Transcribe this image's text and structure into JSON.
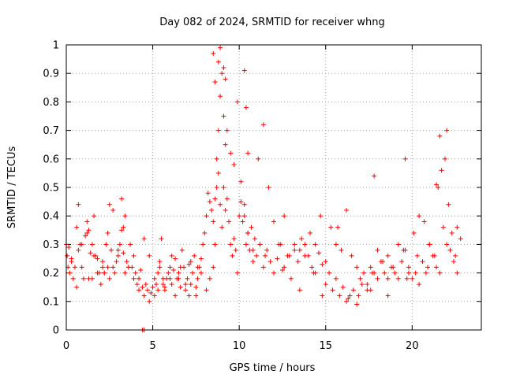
{
  "chart_data": {
    "type": "scatter",
    "title": "Day 082 of 2024, SRMTID for receiver whng",
    "xlabel": "GPS time / hours",
    "ylabel": "SRMTID / TECUs",
    "xlim": [
      0,
      24
    ],
    "ylim": [
      0,
      1
    ],
    "xticks": [
      0,
      5,
      10,
      15,
      20
    ],
    "xtick_labels": [
      "0",
      "5",
      "10",
      "15",
      "20"
    ],
    "yticks": [
      0,
      0.1,
      0.2,
      0.3,
      0.4,
      0.5,
      0.6,
      0.7,
      0.8,
      0.9,
      1
    ],
    "ytick_labels": [
      "0",
      "0.1",
      "0.2",
      "0.3",
      "0.4",
      "0.5",
      "0.6",
      "0.7",
      "0.8",
      "0.9",
      "1"
    ],
    "grid": true,
    "marker": "+",
    "series": [
      {
        "name": "SRMTID",
        "color": "#ff0000",
        "x": [
          0.0,
          0.1,
          0.2,
          0.3,
          0.4,
          0.5,
          0.6,
          0.7,
          0.8,
          0.9,
          1.0,
          1.1,
          1.2,
          1.3,
          1.4,
          1.5,
          1.6,
          1.7,
          1.8,
          1.9,
          2.0,
          2.1,
          2.2,
          2.3,
          2.4,
          2.5,
          2.6,
          2.7,
          2.8,
          2.9,
          3.0,
          3.1,
          3.2,
          3.3,
          3.4,
          3.5,
          3.6,
          3.7,
          3.8,
          3.9,
          4.0,
          4.1,
          4.2,
          4.3,
          4.4,
          4.5,
          4.6,
          4.7,
          4.8,
          4.9,
          5.0,
          5.1,
          5.2,
          5.3,
          5.4,
          5.5,
          5.6,
          5.7,
          5.8,
          5.9,
          6.0,
          6.1,
          6.2,
          6.3,
          6.4,
          6.5,
          6.6,
          6.7,
          6.8,
          6.9,
          7.0,
          7.1,
          7.2,
          7.3,
          7.4,
          7.5,
          7.6,
          7.7,
          7.8,
          7.9,
          8.0,
          8.1,
          8.2,
          8.3,
          8.4,
          8.5,
          8.6,
          8.7,
          8.8,
          8.9,
          9.0,
          9.1,
          9.2,
          9.3,
          9.4,
          9.5,
          9.6,
          9.7,
          9.8,
          9.9,
          10.0,
          10.1,
          10.2,
          10.3,
          10.4,
          10.5,
          10.6,
          10.7,
          10.8,
          10.9,
          11.0,
          11.2,
          11.4,
          11.6,
          11.8,
          12.0,
          12.2,
          12.4,
          12.6,
          12.8,
          13.0,
          13.2,
          13.4,
          13.6,
          13.8,
          14.0,
          14.2,
          14.4,
          14.6,
          14.8,
          15.0,
          15.2,
          15.4,
          15.6,
          15.8,
          16.0,
          16.2,
          16.4,
          16.6,
          16.8,
          17.0,
          17.2,
          17.4,
          17.6,
          17.8,
          18.0,
          18.2,
          18.4,
          18.6,
          18.8,
          19.0,
          19.2,
          19.4,
          19.6,
          19.8,
          20.0,
          20.2,
          20.4,
          20.6,
          20.8,
          21.0,
          21.2,
          21.4,
          21.6,
          21.8,
          22.0,
          22.2,
          22.4,
          22.6,
          22.8,
          0.05,
          0.3,
          0.6,
          0.9,
          1.2,
          1.5,
          1.8,
          2.1,
          2.4,
          2.7,
          3.0,
          3.3,
          3.6,
          3.9,
          4.2,
          4.5,
          4.8,
          5.1,
          5.4,
          5.7,
          6.0,
          6.3,
          6.6,
          6.9,
          7.2,
          7.5,
          7.8,
          8.1,
          8.3,
          8.5,
          8.6,
          8.7,
          8.8,
          8.9,
          9.0,
          9.1,
          9.2,
          9.3,
          9.5,
          9.7,
          9.9,
          10.1,
          10.3,
          10.5,
          10.8,
          11.1,
          11.4,
          11.7,
          12.0,
          12.3,
          12.6,
          12.9,
          13.2,
          13.5,
          13.8,
          14.1,
          14.4,
          14.7,
          15.0,
          15.3,
          15.6,
          15.9,
          16.2,
          16.5,
          16.8,
          17.1,
          17.4,
          17.7,
          18.0,
          18.3,
          18.6,
          18.9,
          19.2,
          19.5,
          19.8,
          20.1,
          20.4,
          20.7,
          21.0,
          21.3,
          21.5,
          21.7,
          21.9,
          22.1,
          22.3,
          22.6,
          4.4,
          4.5,
          8.5,
          8.6,
          8.8,
          8.9,
          9.1,
          9.2,
          10.3,
          10.4,
          10.5,
          17.8,
          19.6,
          21.4,
          21.6,
          22.0,
          0.15,
          0.7,
          1.3,
          1.6,
          2.2,
          2.5,
          3.2,
          3.4,
          5.3,
          5.6,
          6.1,
          6.5,
          7.1,
          7.6,
          11.5,
          12.5,
          13.5,
          14.3,
          14.8,
          15.7,
          16.3,
          16.9,
          17.6,
          18.6,
          19.7,
          20.3,
          20.9,
          22.5
        ],
        "y": [
          0.3,
          0.22,
          0.2,
          0.25,
          0.18,
          0.22,
          0.15,
          0.28,
          0.3,
          0.22,
          0.18,
          0.33,
          0.38,
          0.35,
          0.27,
          0.3,
          0.4,
          0.26,
          0.25,
          0.2,
          0.16,
          0.22,
          0.2,
          0.3,
          0.22,
          0.18,
          0.28,
          0.22,
          0.2,
          0.24,
          0.26,
          0.3,
          0.35,
          0.27,
          0.2,
          0.24,
          0.22,
          0.3,
          0.22,
          0.18,
          0.2,
          0.16,
          0.18,
          0.21,
          0.15,
          0.12,
          0.16,
          0.14,
          0.1,
          0.13,
          0.15,
          0.12,
          0.16,
          0.14,
          0.24,
          0.32,
          0.18,
          0.15,
          0.18,
          0.2,
          0.22,
          0.16,
          0.21,
          0.25,
          0.18,
          0.2,
          0.15,
          0.28,
          0.22,
          0.14,
          0.18,
          0.12,
          0.16,
          0.2,
          0.26,
          0.15,
          0.18,
          0.22,
          0.25,
          0.3,
          0.34,
          0.4,
          0.48,
          0.45,
          0.42,
          0.38,
          0.46,
          0.5,
          0.55,
          0.44,
          0.36,
          0.5,
          0.42,
          0.46,
          0.38,
          0.3,
          0.26,
          0.32,
          0.28,
          0.2,
          0.4,
          0.45,
          0.38,
          0.44,
          0.3,
          0.34,
          0.28,
          0.36,
          0.24,
          0.32,
          0.26,
          0.3,
          0.22,
          0.28,
          0.24,
          0.2,
          0.25,
          0.3,
          0.22,
          0.26,
          0.18,
          0.28,
          0.24,
          0.32,
          0.3,
          0.26,
          0.22,
          0.2,
          0.27,
          0.23,
          0.16,
          0.2,
          0.14,
          0.18,
          0.12,
          0.15,
          0.1,
          0.12,
          0.14,
          0.09,
          0.18,
          0.2,
          0.16,
          0.22,
          0.2,
          0.18,
          0.24,
          0.2,
          0.26,
          0.22,
          0.2,
          0.18,
          0.24,
          0.28,
          0.22,
          0.18,
          0.2,
          0.16,
          0.24,
          0.2,
          0.3,
          0.26,
          0.22,
          0.2,
          0.36,
          0.3,
          0.28,
          0.24,
          0.2,
          0.32,
          0.26,
          0.24,
          0.36,
          0.3,
          0.34,
          0.18,
          0.2,
          0.24,
          0.34,
          0.42,
          0.28,
          0.36,
          0.22,
          0.26,
          0.14,
          0.32,
          0.26,
          0.18,
          0.22,
          0.14,
          0.18,
          0.12,
          0.22,
          0.16,
          0.24,
          0.12,
          0.2,
          0.14,
          0.18,
          0.22,
          0.3,
          0.6,
          0.7,
          0.82,
          0.9,
          0.75,
          0.65,
          0.7,
          0.62,
          0.58,
          0.8,
          0.52,
          0.4,
          0.34,
          0.28,
          0.6,
          0.72,
          0.5,
          0.38,
          0.3,
          0.4,
          0.26,
          0.3,
          0.28,
          0.26,
          0.34,
          0.3,
          0.4,
          0.24,
          0.36,
          0.3,
          0.28,
          0.42,
          0.26,
          0.22,
          0.16,
          0.14,
          0.2,
          0.28,
          0.24,
          0.18,
          0.22,
          0.3,
          0.28,
          0.2,
          0.34,
          0.4,
          0.38,
          0.3,
          0.26,
          0.5,
          0.56,
          0.6,
          0.44,
          0.34,
          0.36,
          0.0,
          0.0,
          0.97,
          0.87,
          0.94,
          0.99,
          0.92,
          0.88,
          0.91,
          0.78,
          0.62,
          0.54,
          0.6,
          0.51,
          0.68,
          0.7,
          0.29,
          0.44,
          0.18,
          0.26,
          0.2,
          0.44,
          0.46,
          0.4,
          0.2,
          0.16,
          0.26,
          0.18,
          0.23,
          0.22,
          0.26,
          0.21,
          0.14,
          0.2,
          0.12,
          0.36,
          0.11,
          0.12,
          0.14,
          0.12,
          0.18,
          0.26,
          0.22,
          0.26
        ]
      }
    ]
  }
}
